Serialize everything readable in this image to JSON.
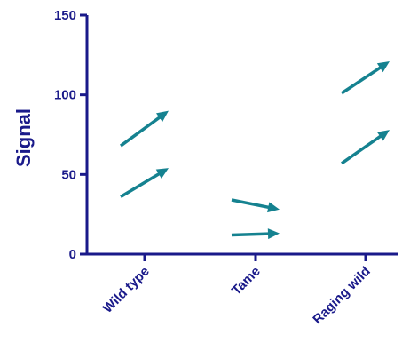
{
  "chart_data": {
    "type": "arrow-plot",
    "title": "",
    "xlabel": "",
    "ylabel": "Signal",
    "ylim": [
      0,
      150
    ],
    "yticks": [
      0,
      50,
      100,
      150
    ],
    "categories": [
      "Wild type",
      "Tame",
      "Raging wild"
    ],
    "grid": false,
    "legend": "none",
    "axis_color": "#1a1a8a",
    "arrow_color": "#158290",
    "series": [
      {
        "values": [
          36,
          12,
          57
        ]
      },
      {
        "values": [
          54,
          13,
          78
        ]
      },
      {
        "values": [
          68,
          34,
          101
        ]
      },
      {
        "values": [
          90,
          28,
          121
        ]
      }
    ],
    "arrows": [
      {
        "category": "Wild type",
        "start": 36,
        "end": 54
      },
      {
        "category": "Wild type",
        "start": 68,
        "end": 90
      },
      {
        "category": "Tame",
        "start": 12,
        "end": 13
      },
      {
        "category": "Tame",
        "start": 34,
        "end": 28
      },
      {
        "category": "Raging wild",
        "start": 57,
        "end": 78
      },
      {
        "category": "Raging wild",
        "start": 101,
        "end": 121
      }
    ]
  }
}
